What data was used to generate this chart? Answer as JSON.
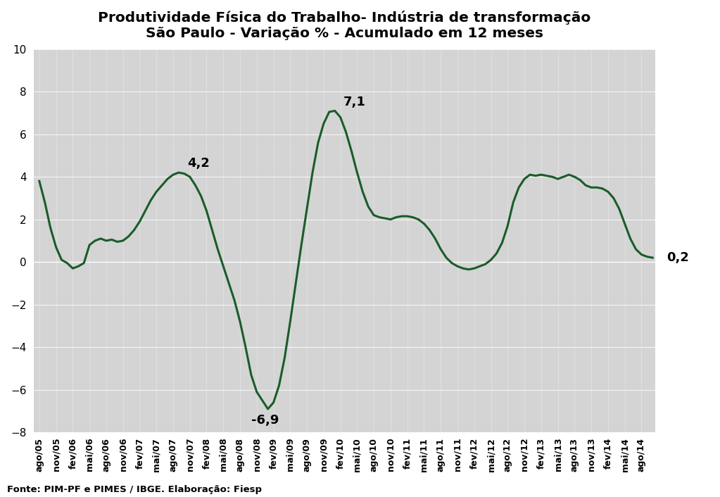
{
  "title_line1": "Produtividade Física do Trabalho- Indústria de transformação",
  "title_line2": "São Paulo - Variação % - Acumulado em 12 meses",
  "source_text": "Fonte: PIM-PF e PIMES / IBGE. Elaboração: Fiesp",
  "line_color": "#1a5c2a",
  "line_width": 2.2,
  "bg_color": "#d4d4d4",
  "fig_color": "#ffffff",
  "ylim": [
    -8,
    10
  ],
  "yticks": [
    -8,
    -6,
    -4,
    -2,
    0,
    2,
    4,
    6,
    8,
    10
  ],
  "x_labels": [
    "ago/05",
    "nov/05",
    "fev/06",
    "mai/06",
    "ago/06",
    "nov/06",
    "fev/07",
    "mai/07",
    "ago/07",
    "nov/07",
    "fev/08",
    "mai/08",
    "ago/08",
    "nov/08",
    "fev/09",
    "mai/09",
    "ago/09",
    "nov/09",
    "fev/10",
    "mai/10",
    "ago/10",
    "nov/10",
    "fev/11",
    "mai/11",
    "ago/11",
    "nov/11",
    "fev/12",
    "mai/12",
    "ago/12",
    "nov/12",
    "fev/13",
    "mai/13",
    "ago/13",
    "nov/13",
    "fev/14",
    "mai/14",
    "ago/14"
  ],
  "values": [
    3.8,
    2.8,
    1.6,
    0.7,
    0.1,
    -0.05,
    -0.3,
    -0.2,
    -0.05,
    0.8,
    1.0,
    1.1,
    1.0,
    1.05,
    0.95,
    1.0,
    1.2,
    1.5,
    1.9,
    2.4,
    2.9,
    3.3,
    3.6,
    3.9,
    4.1,
    4.2,
    4.15,
    4.0,
    3.6,
    3.1,
    2.4,
    1.5,
    0.6,
    -0.2,
    -1.0,
    -1.8,
    -2.8,
    -4.0,
    -5.3,
    -6.1,
    -6.5,
    -6.9,
    -6.6,
    -5.8,
    -4.5,
    -2.8,
    -1.0,
    0.8,
    2.5,
    4.2,
    5.6,
    6.5,
    7.05,
    7.1,
    6.8,
    6.1,
    5.2,
    4.2,
    3.3,
    2.6,
    2.2,
    2.1,
    2.05,
    2.0,
    2.1,
    2.15,
    2.15,
    2.1,
    2.0,
    1.8,
    1.5,
    1.1,
    0.6,
    0.2,
    -0.05,
    -0.2,
    -0.3,
    -0.35,
    -0.3,
    -0.2,
    -0.1,
    0.1,
    0.4,
    0.9,
    1.7,
    2.8,
    3.5,
    3.9,
    4.1,
    4.05,
    4.1,
    4.05,
    4.0,
    3.9,
    4.0,
    4.1,
    4.0,
    3.85,
    3.6,
    3.5,
    3.5,
    3.45,
    3.3,
    3.0,
    2.5,
    1.8,
    1.1,
    0.6,
    0.35,
    0.25,
    0.2
  ],
  "ann_42_idx": 25,
  "ann_71_idx": 53,
  "ann_69_idx": 41,
  "ann_02_idx": 109
}
